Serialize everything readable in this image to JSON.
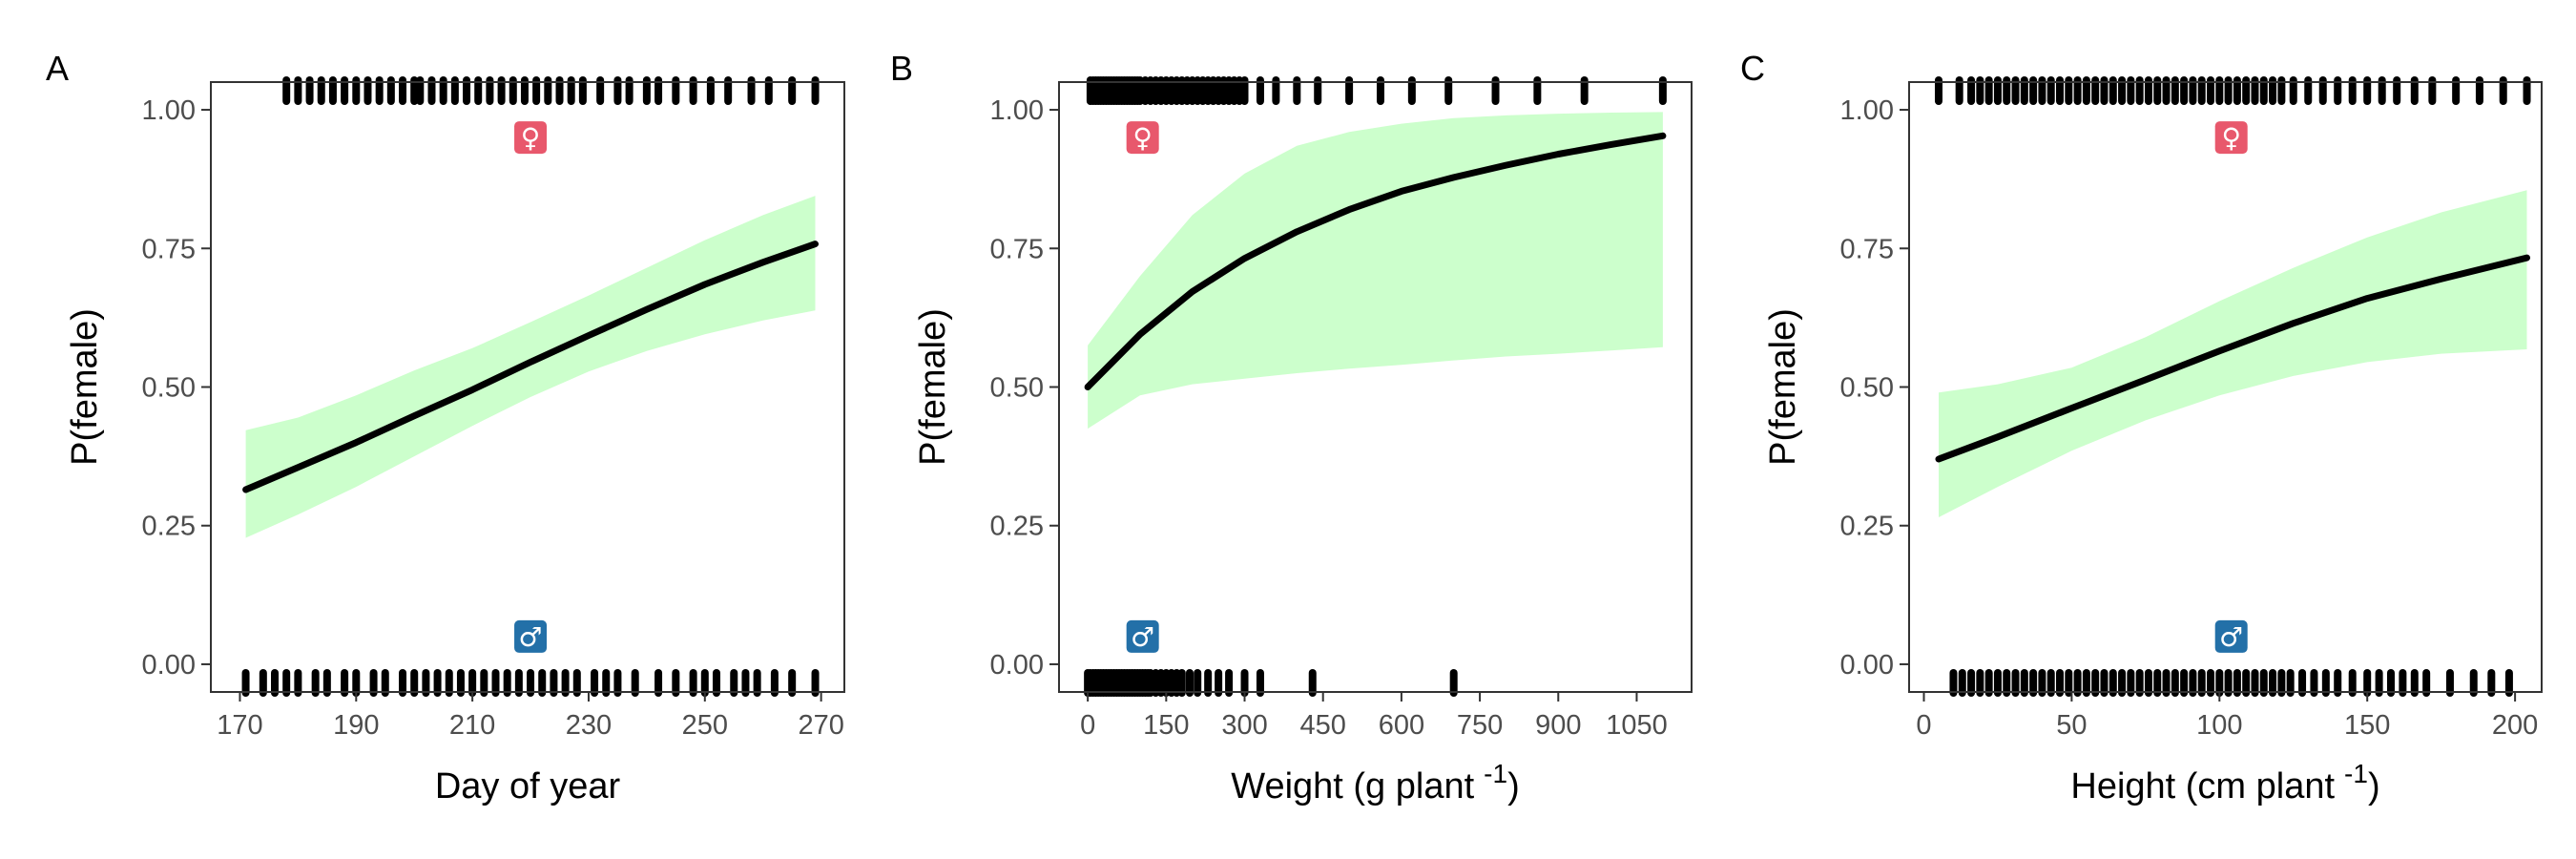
{
  "figure": {
    "colors": {
      "band": "#ccffcc",
      "curve": "#000000",
      "female_badge": "#e8586c",
      "male_badge": "#2370a8",
      "rug": "#000000",
      "frame": "#333333",
      "tick_text": "#4d4d4d"
    }
  },
  "chart_data": [
    {
      "panel": "A",
      "type": "line",
      "xlabel": "Day of year",
      "xlabel_sup": "",
      "xlabel_suffix": "",
      "ylabel": "P(female)",
      "xlim": [
        165,
        274
      ],
      "ylim": [
        -0.05,
        1.05
      ],
      "xticks": [
        170,
        190,
        210,
        230,
        250,
        270
      ],
      "yticks": [
        0.0,
        0.25,
        0.5,
        0.75,
        1.0
      ],
      "ytick_labels": [
        "0.00",
        "0.25",
        "0.50",
        "0.75",
        "1.00"
      ],
      "grid": false,
      "legend": "none",
      "female_symbol": "♀",
      "male_symbol": "♂",
      "symbol_x": 220,
      "symbol_y_female": 0.95,
      "symbol_y_male": 0.05,
      "fit": {
        "x": [
          171,
          180,
          190,
          200,
          210,
          220,
          230,
          240,
          250,
          260,
          269
        ],
        "y": [
          0.315,
          0.355,
          0.4,
          0.448,
          0.495,
          0.545,
          0.593,
          0.64,
          0.685,
          0.725,
          0.758
        ],
        "lower": [
          0.228,
          0.27,
          0.32,
          0.375,
          0.43,
          0.482,
          0.528,
          0.565,
          0.595,
          0.62,
          0.638
        ],
        "upper": [
          0.422,
          0.445,
          0.485,
          0.53,
          0.57,
          0.617,
          0.665,
          0.715,
          0.765,
          0.81,
          0.845
        ]
      },
      "rug_female": [
        178,
        180,
        182,
        184,
        186,
        188,
        190,
        192,
        194,
        196,
        198,
        200,
        201,
        203,
        205,
        207,
        209,
        211,
        213,
        215,
        217,
        219,
        221,
        223,
        225,
        227,
        229,
        232,
        235,
        237,
        240,
        242,
        245,
        248,
        251,
        254,
        258,
        261,
        265,
        269
      ],
      "rug_male": [
        171,
        174,
        176,
        178,
        180,
        183,
        185,
        188,
        190,
        193,
        195,
        198,
        200,
        202,
        204,
        206,
        208,
        210,
        212,
        214,
        216,
        218,
        220,
        222,
        224,
        226,
        228,
        231,
        233,
        235,
        238,
        242,
        245,
        248,
        250,
        252,
        255,
        257,
        259,
        262,
        265,
        269
      ]
    },
    {
      "panel": "B",
      "type": "line",
      "xlabel": "Weight (g plant",
      "xlabel_sup": "-1",
      "xlabel_suffix": ")",
      "ylabel": "P(female)",
      "xlim": [
        -55,
        1155
      ],
      "ylim": [
        -0.05,
        1.05
      ],
      "xticks": [
        0,
        150,
        300,
        450,
        600,
        750,
        900,
        1050
      ],
      "yticks": [
        0.0,
        0.25,
        0.5,
        0.75,
        1.0
      ],
      "ytick_labels": [
        "0.00",
        "0.25",
        "0.50",
        "0.75",
        "1.00"
      ],
      "grid": false,
      "legend": "none",
      "female_symbol": "♀",
      "male_symbol": "♂",
      "symbol_x": 105,
      "symbol_y_female": 0.95,
      "symbol_y_male": 0.05,
      "fit": {
        "x": [
          0,
          100,
          200,
          300,
          400,
          500,
          600,
          700,
          800,
          900,
          1000,
          1100
        ],
        "y": [
          0.5,
          0.595,
          0.672,
          0.732,
          0.78,
          0.82,
          0.853,
          0.878,
          0.9,
          0.92,
          0.937,
          0.953
        ],
        "lower": [
          0.425,
          0.485,
          0.505,
          0.515,
          0.525,
          0.533,
          0.54,
          0.548,
          0.555,
          0.56,
          0.566,
          0.572
        ],
        "upper": [
          0.575,
          0.7,
          0.81,
          0.885,
          0.935,
          0.96,
          0.975,
          0.985,
          0.99,
          0.993,
          0.995,
          0.996
        ]
      },
      "rug_female": [
        5,
        10,
        15,
        20,
        25,
        30,
        35,
        40,
        45,
        50,
        55,
        60,
        65,
        70,
        75,
        80,
        85,
        90,
        95,
        100,
        110,
        120,
        130,
        140,
        150,
        160,
        170,
        180,
        190,
        200,
        210,
        220,
        230,
        240,
        250,
        260,
        270,
        280,
        290,
        300,
        330,
        360,
        400,
        440,
        500,
        560,
        620,
        690,
        780,
        860,
        950,
        1100
      ],
      "rug_male": [
        0,
        5,
        10,
        15,
        20,
        25,
        30,
        35,
        40,
        45,
        50,
        55,
        60,
        65,
        70,
        75,
        80,
        85,
        90,
        95,
        100,
        105,
        110,
        115,
        120,
        130,
        140,
        150,
        160,
        170,
        180,
        195,
        210,
        230,
        250,
        270,
        300,
        330,
        430,
        700
      ]
    },
    {
      "panel": "C",
      "type": "line",
      "xlabel": "Height (cm plant",
      "xlabel_sup": "-1",
      "xlabel_suffix": ")",
      "ylabel": "P(female)",
      "xlim": [
        -5,
        209
      ],
      "ylim": [
        -0.05,
        1.05
      ],
      "xticks": [
        0,
        50,
        100,
        150,
        200
      ],
      "yticks": [
        0.0,
        0.25,
        0.5,
        0.75,
        1.0
      ],
      "ytick_labels": [
        "0.00",
        "0.25",
        "0.50",
        "0.75",
        "1.00"
      ],
      "grid": false,
      "legend": "none",
      "female_symbol": "♀",
      "male_symbol": "♂",
      "symbol_x": 104,
      "symbol_y_female": 0.95,
      "symbol_y_male": 0.05,
      "fit": {
        "x": [
          5,
          25,
          50,
          75,
          100,
          125,
          150,
          175,
          204
        ],
        "y": [
          0.37,
          0.41,
          0.462,
          0.513,
          0.565,
          0.615,
          0.66,
          0.695,
          0.733
        ],
        "lower": [
          0.265,
          0.32,
          0.385,
          0.44,
          0.485,
          0.52,
          0.545,
          0.56,
          0.568
        ],
        "upper": [
          0.49,
          0.505,
          0.535,
          0.59,
          0.655,
          0.715,
          0.77,
          0.815,
          0.855
        ]
      },
      "rug_female": [
        5,
        12,
        16,
        19,
        22,
        25,
        28,
        31,
        34,
        37,
        40,
        43,
        46,
        49,
        52,
        55,
        58,
        61,
        64,
        67,
        70,
        73,
        76,
        79,
        82,
        85,
        88,
        91,
        94,
        97,
        100,
        103,
        106,
        109,
        112,
        115,
        118,
        121,
        125,
        130,
        135,
        140,
        145,
        150,
        155,
        160,
        166,
        172,
        180,
        188,
        196,
        204
      ],
      "rug_male": [
        10,
        13,
        16,
        19,
        22,
        25,
        28,
        31,
        34,
        37,
        40,
        43,
        46,
        49,
        52,
        55,
        58,
        61,
        64,
        67,
        70,
        73,
        76,
        79,
        82,
        85,
        88,
        91,
        94,
        97,
        100,
        103,
        106,
        109,
        112,
        115,
        118,
        121,
        124,
        128,
        132,
        136,
        140,
        145,
        150,
        154,
        158,
        162,
        166,
        170,
        178,
        186,
        192,
        198
      ]
    }
  ]
}
